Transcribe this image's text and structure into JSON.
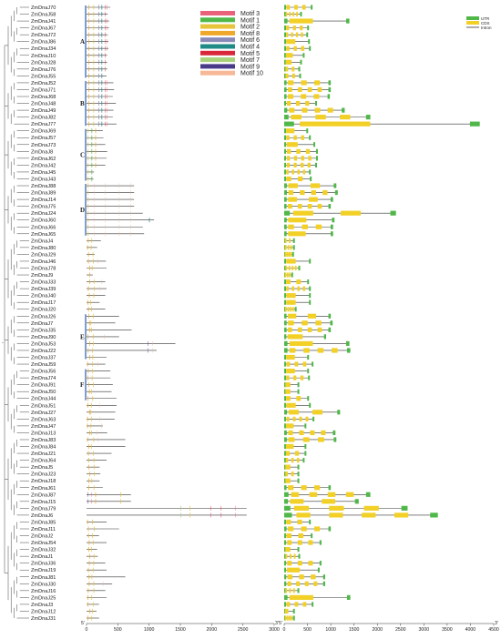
{
  "genes": [
    "ZmDnaJ70",
    "ZmDnaJ58",
    "ZmDnaJ41",
    "ZmDnaJ67",
    "ZmDnaJ72",
    "ZmDnaJ86",
    "ZmDnaJ34",
    "ZmDnaJ10",
    "ZmDnaJ28",
    "ZmDnaJ76",
    "ZmDnaJ55",
    "ZmDnaJ52",
    "ZmDnaJ71",
    "ZmDnaJ68",
    "ZmDnaJ48",
    "ZmDnaJ49",
    "ZmDnaJ82",
    "ZmDnaJ77",
    "ZmDnaJ69",
    "ZmDnaJ57",
    "ZmDnaJ73",
    "ZmDnaJ8",
    "ZmDnaJ62",
    "ZmDnaJ42",
    "ZmDnaJ45",
    "ZmDnaJ43",
    "ZmDnaJ88",
    "ZmDnaJ89",
    "ZmDnaJ14",
    "ZmDnaJ75",
    "ZmDnaJ24",
    "ZmDnaJ60",
    "ZmDnaJ66",
    "ZmDnaJ65",
    "ZmDnaJ4",
    "ZmDnaJ80",
    "ZmDnaJ29",
    "ZmDnaJ46",
    "ZmDnaJ78",
    "ZmDnaJ9",
    "ZmDnaJ33",
    "ZmDnaJ39",
    "ZmDnaJ40",
    "ZmDnaJ17",
    "ZmDnaJ20",
    "ZmDnaJ26",
    "ZmDnaJ7",
    "ZmDnaJ35",
    "ZmDnaJ90",
    "ZmDnaJ53",
    "ZmDnaJ22",
    "ZmDnaJ37",
    "ZmDnaJ59",
    "ZmDnaJ56",
    "ZmDnaJ74",
    "ZmDnaJ91",
    "ZmDnaJ50",
    "ZmDnaJ44",
    "ZmDnaJ51",
    "ZmDnaJ27",
    "ZmDnaJ63",
    "ZmDnaJ47",
    "ZmDnaJ13",
    "ZmDnaJ83",
    "ZmDnaJ84",
    "ZmDnaJ21",
    "ZmDnaJ64",
    "ZmDnaJ5",
    "ZmDnaJ23",
    "ZmDnaJ18",
    "ZmDnaJ61",
    "ZmDnaJ87",
    "ZmDnaJ15",
    "ZmDnaJ79",
    "ZmDnaJ6",
    "ZmDnaJ85",
    "ZmDnaJ11",
    "ZmDnaJ2",
    "ZmDnaJ54",
    "ZmDnaJ32",
    "ZmDnaJ1",
    "ZmDnaJ36",
    "ZmDnaJ19",
    "ZmDnaJ81",
    "ZmDnaJ30",
    "ZmDnaJ16",
    "ZmDnaJ25",
    "ZmDnaJ3",
    "ZmDnaJ12",
    "ZmDnaJ31"
  ],
  "groups": [
    {
      "label": "A",
      "start": 0,
      "end": 10
    },
    {
      "label": "B",
      "start": 11,
      "end": 17
    },
    {
      "label": "C",
      "start": 18,
      "end": 25
    },
    {
      "label": "D",
      "start": 26,
      "end": 33
    },
    {
      "label": "E",
      "start": 45,
      "end": 51
    },
    {
      "label": "F",
      "start": 53,
      "end": 57
    }
  ],
  "motif_legend": [
    {
      "label": "Motif 3",
      "color": "#e8627a"
    },
    {
      "label": "Motif 1",
      "color": "#4fb848"
    },
    {
      "label": "Motif 2",
      "color": "#e8c43a"
    },
    {
      "label": "Motif 8",
      "color": "#f0a82a"
    },
    {
      "label": "Motif 6",
      "color": "#8a8ab8"
    },
    {
      "label": "Motif 4",
      "color": "#1f8a86"
    },
    {
      "label": "Motif 5",
      "color": "#d8283a"
    },
    {
      "label": "Motif 7",
      "color": "#a8d27a"
    },
    {
      "label": "Motif 9",
      "color": "#4a3a8a"
    },
    {
      "label": "Motif 10",
      "color": "#f6b896"
    }
  ],
  "structure_legend": [
    {
      "label": "UTR",
      "color": "#4fb848"
    },
    {
      "label": "CDS",
      "color": "#f2d026"
    },
    {
      "label": "Intron",
      "color": "#333333"
    }
  ],
  "protein_axis": {
    "ticks": [
      "0",
      "500",
      "1000",
      "1500",
      "2000",
      "2500",
      "3000"
    ],
    "max": 3000,
    "end_left": "5'",
    "end_right": "3'"
  },
  "gene_axis": {
    "ticks": [
      "0",
      "500",
      "1000",
      "1500",
      "2000",
      "2500",
      "3000",
      "3500",
      "4000",
      "4500"
    ],
    "max": 4500,
    "end_left": "5'",
    "end_right": "3'"
  },
  "left_mark": "-"
}
